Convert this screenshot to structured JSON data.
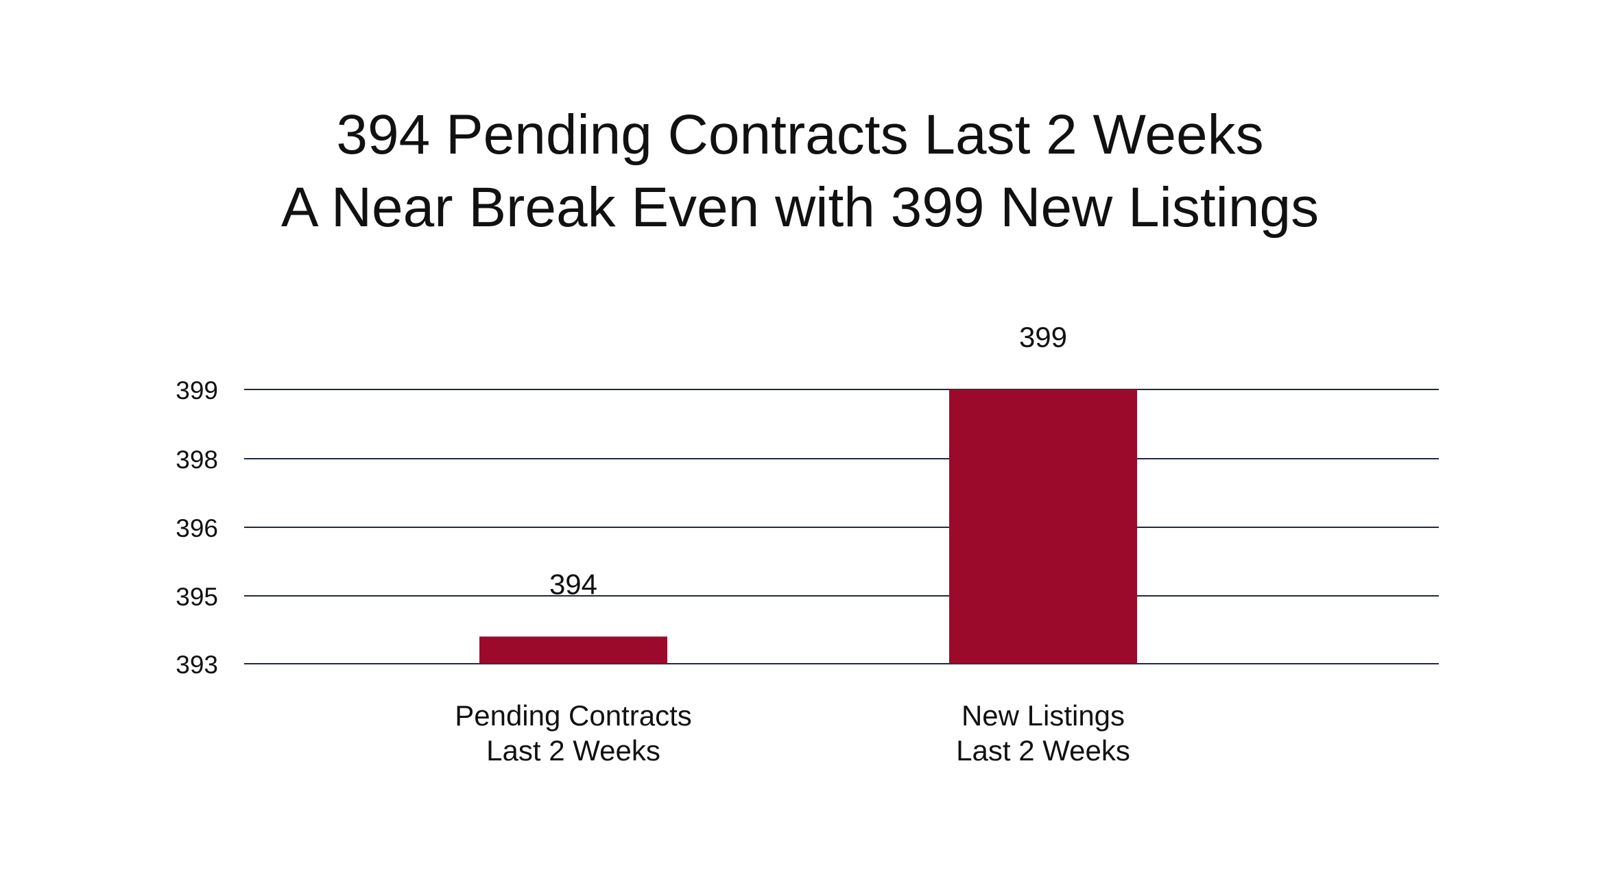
{
  "chart_data": {
    "type": "bar",
    "title_lines": [
      "394 Pending Contracts Last 2 Weeks",
      "A Near Break Even with 399 New Listings"
    ],
    "categories": [
      [
        "Pending Contracts",
        "Last 2 Weeks"
      ],
      [
        "New Listings",
        "Last 2 Weeks"
      ]
    ],
    "values": [
      394,
      399
    ],
    "data_labels": [
      "394",
      "399"
    ],
    "y_ticks": [
      "399",
      "398",
      "396",
      "395",
      "393"
    ],
    "grid": true,
    "legend": "none",
    "xlabel": "",
    "ylabel": "",
    "colors": {
      "bar": "#9B0A2B",
      "grid": "#1F2A3C",
      "text": "#111111"
    }
  }
}
